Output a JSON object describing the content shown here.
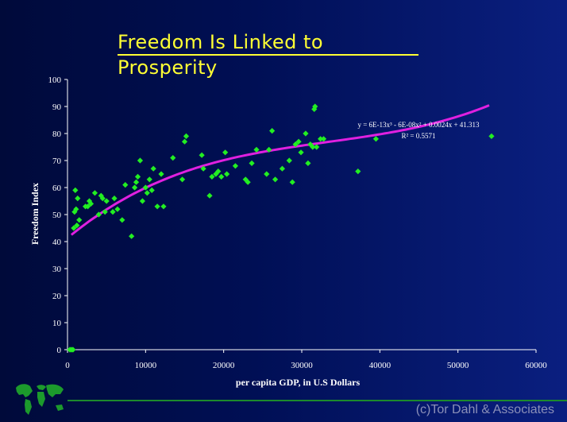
{
  "title": {
    "line1": "Freedom Is Linked to",
    "line2": "Prosperity"
  },
  "footer": {
    "copyright": "(c)Tor Dahl & Associates",
    "logo_icon": "world-map-icon"
  },
  "colors": {
    "background": "#000f55",
    "title": "#ffff33",
    "points": "#22ee22",
    "trendline": "#e020e0",
    "footer_line": "#1c8a2c"
  },
  "chart_data": {
    "type": "scatter",
    "xlabel": "per capita GDP, in U.S Dollars",
    "ylabel": "Freedom Index",
    "xlim": [
      0,
      60000
    ],
    "ylim": [
      0,
      100
    ],
    "x_ticks": [
      0,
      10000,
      20000,
      30000,
      40000,
      50000,
      60000
    ],
    "y_ticks": [
      0,
      10,
      20,
      30,
      40,
      50,
      60,
      70,
      80,
      90,
      100
    ],
    "grid": false,
    "trendline": {
      "type": "polynomial-3",
      "equation": "y = 6E-13x³ - 6E-08x² + 0.0024x + 41.313",
      "r_squared": "R² = 0.5571",
      "coefficients": [
        6e-13,
        -6e-08,
        0.0024,
        41.313
      ],
      "x_range": [
        500,
        54000
      ]
    },
    "points": [
      [
        300,
        0
      ],
      [
        500,
        0
      ],
      [
        700,
        0
      ],
      [
        800,
        45
      ],
      [
        900,
        51
      ],
      [
        1000,
        59
      ],
      [
        1100,
        52
      ],
      [
        1200,
        46
      ],
      [
        1300,
        56
      ],
      [
        1500,
        48
      ],
      [
        2300,
        53
      ],
      [
        2600,
        53
      ],
      [
        2800,
        55
      ],
      [
        3000,
        54
      ],
      [
        3500,
        58
      ],
      [
        4000,
        50
      ],
      [
        4300,
        57
      ],
      [
        4500,
        56
      ],
      [
        4800,
        51
      ],
      [
        5000,
        55
      ],
      [
        5800,
        51
      ],
      [
        6000,
        56
      ],
      [
        6400,
        52
      ],
      [
        7000,
        48
      ],
      [
        7400,
        61
      ],
      [
        8200,
        42
      ],
      [
        8600,
        60
      ],
      [
        8800,
        62
      ],
      [
        9000,
        64
      ],
      [
        9300,
        70
      ],
      [
        9600,
        55
      ],
      [
        10000,
        60
      ],
      [
        10200,
        58
      ],
      [
        10500,
        63
      ],
      [
        10800,
        59
      ],
      [
        11000,
        67
      ],
      [
        11500,
        53
      ],
      [
        12000,
        65
      ],
      [
        12300,
        53
      ],
      [
        13500,
        71
      ],
      [
        14700,
        63
      ],
      [
        15000,
        77
      ],
      [
        15200,
        79
      ],
      [
        17200,
        72
      ],
      [
        17400,
        67
      ],
      [
        18200,
        57
      ],
      [
        18500,
        64
      ],
      [
        19000,
        65
      ],
      [
        19300,
        66
      ],
      [
        19700,
        64
      ],
      [
        20200,
        73
      ],
      [
        20400,
        65
      ],
      [
        21500,
        68
      ],
      [
        22800,
        63
      ],
      [
        23100,
        62
      ],
      [
        23600,
        69
      ],
      [
        24200,
        74
      ],
      [
        25500,
        65
      ],
      [
        25800,
        74
      ],
      [
        26200,
        81
      ],
      [
        26600,
        63
      ],
      [
        27500,
        67
      ],
      [
        28400,
        70
      ],
      [
        28800,
        62
      ],
      [
        29200,
        76
      ],
      [
        29600,
        77
      ],
      [
        29900,
        73
      ],
      [
        30500,
        80
      ],
      [
        30800,
        69
      ],
      [
        31100,
        76
      ],
      [
        31400,
        75
      ],
      [
        31600,
        89
      ],
      [
        31700,
        90
      ],
      [
        31900,
        75
      ],
      [
        32400,
        78
      ],
      [
        32800,
        78
      ],
      [
        37200,
        66
      ],
      [
        39500,
        78
      ],
      [
        54300,
        79
      ]
    ]
  }
}
